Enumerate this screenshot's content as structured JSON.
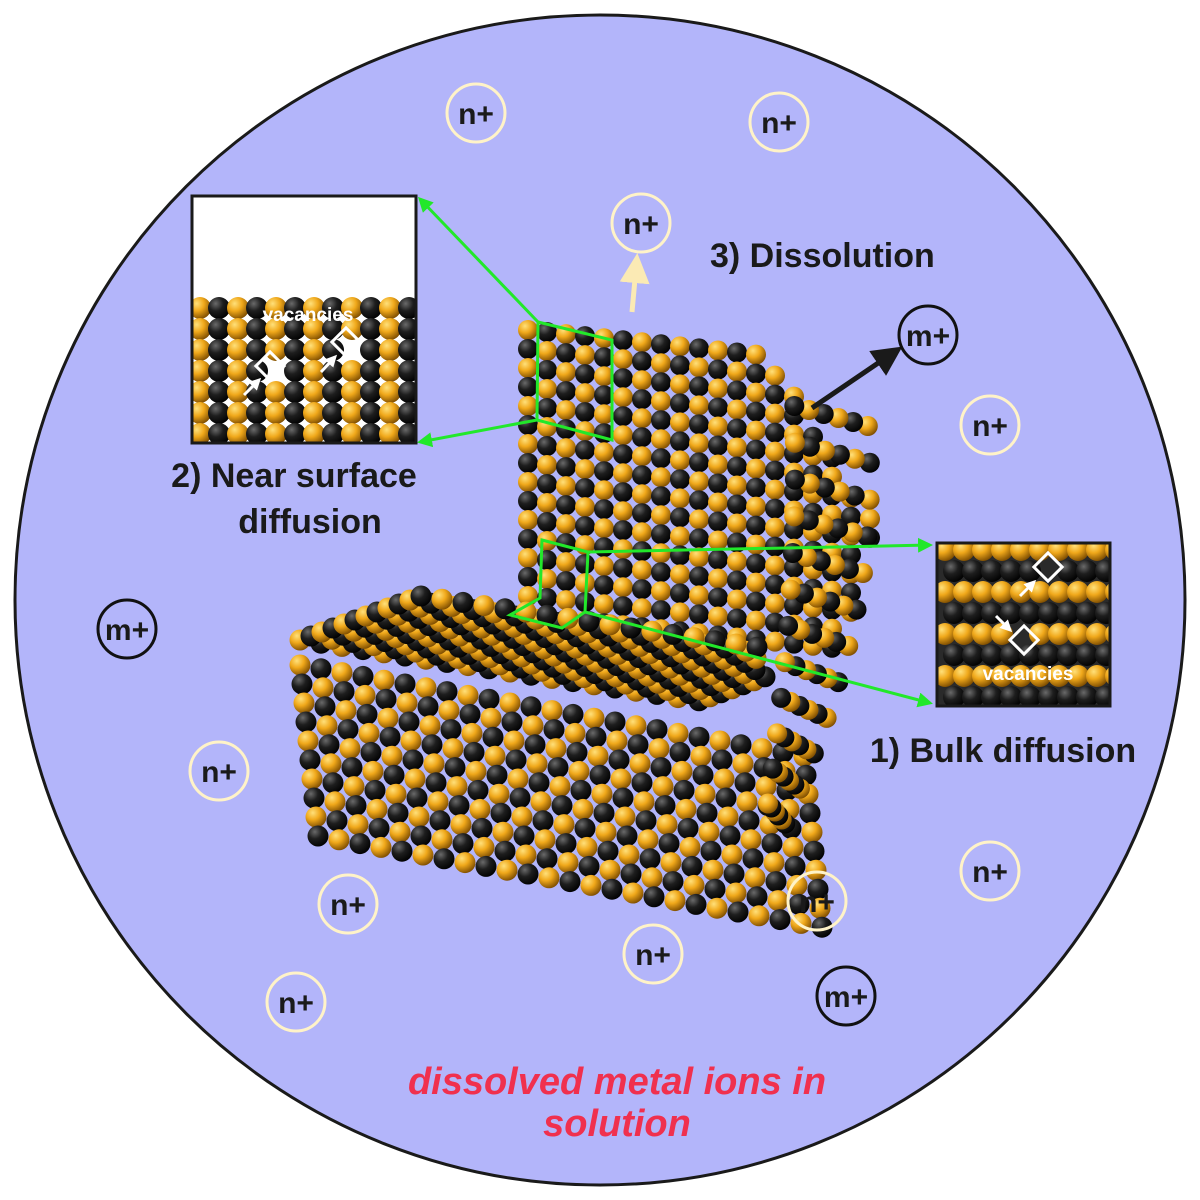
{
  "labels": {
    "dissolution": "3) Dissolution",
    "near_surface_line1": "2) Near surface",
    "near_surface_line2": "diffusion",
    "bulk": "1) Bulk diffusion",
    "vacancies_top": "vacancies",
    "vacancies_right": "vacancies",
    "solution_line1": "dissolved metal ions in",
    "solution_line2": "solution"
  },
  "ions": [
    {
      "label": "n+",
      "kind": "n"
    },
    {
      "label": "n+",
      "kind": "n"
    },
    {
      "label": "n+",
      "kind": "n"
    },
    {
      "label": "m+",
      "kind": "m"
    },
    {
      "label": "n+",
      "kind": "n"
    },
    {
      "label": "m+",
      "kind": "m"
    },
    {
      "label": "n+",
      "kind": "n"
    },
    {
      "label": "n+",
      "kind": "n"
    },
    {
      "label": "n+",
      "kind": "n"
    },
    {
      "label": "n+",
      "kind": "n"
    },
    {
      "label": "n+",
      "kind": "n"
    },
    {
      "label": "m+",
      "kind": "m"
    },
    {
      "label": "n+",
      "kind": "n"
    }
  ],
  "colors": {
    "solution": "#b3b5fa",
    "outline": "#1a1a1a",
    "gold_atom": "#f0a81a",
    "dark_atom": "#1c1c1c",
    "n_ion_ring": "#fff3c8",
    "m_ion_ring": "#111111",
    "guide": "#22e82a",
    "solution_text": "#f0304e"
  }
}
